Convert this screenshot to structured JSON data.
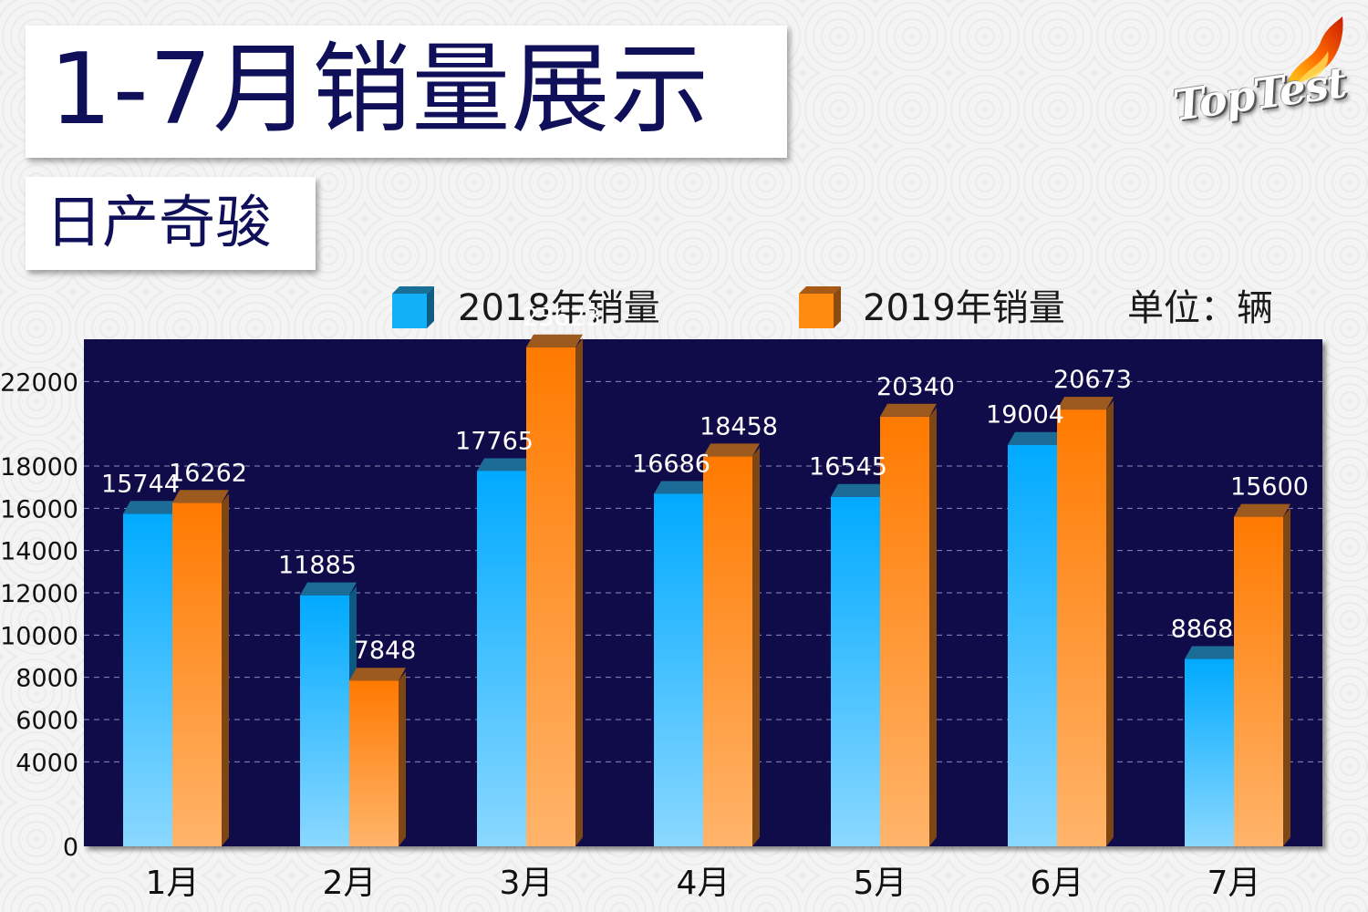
{
  "header": {
    "title": "1-7月销量展示",
    "subtitle": "日产奇骏",
    "logo_text": "TopTest"
  },
  "legend": {
    "unit": "单位：辆"
  },
  "colors": {
    "series_2018": "#12b0f6",
    "series_2019": "#ff8a10",
    "panel": "#100c4a",
    "title": "#0f0f5a"
  },
  "chart_data": {
    "type": "bar",
    "title": "1-7月销量展示",
    "subtitle": "日产奇骏",
    "categories": [
      "1月",
      "2月",
      "3月",
      "4月",
      "5月",
      "6月",
      "7月"
    ],
    "series": [
      {
        "name": "2018年销量",
        "values": [
          15744,
          11885,
          17765,
          16686,
          16545,
          19004,
          8868
        ]
      },
      {
        "name": "2019年销量",
        "values": [
          16262,
          7848,
          23623,
          18458,
          20340,
          20673,
          15600
        ]
      }
    ],
    "y_ticks": [
      0,
      4000,
      6000,
      8000,
      10000,
      12000,
      14000,
      16000,
      18000,
      22000
    ],
    "ylim": [
      0,
      24000
    ],
    "grid": true,
    "legend_position": "top",
    "unit": "单位：辆"
  }
}
